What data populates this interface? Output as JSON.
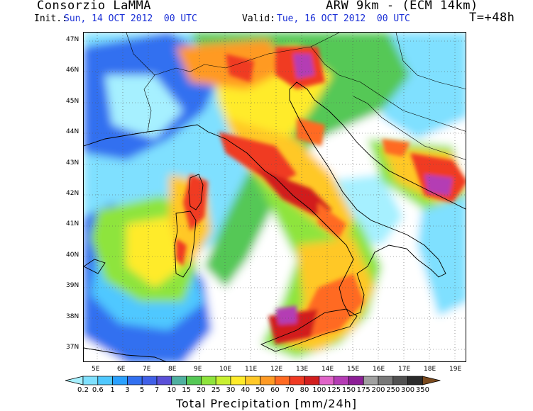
{
  "header": {
    "source": "Consorzio LaMMA",
    "model": "ARW 9km - (ECM 14km)",
    "init_label": "Init.:",
    "init_value": "Sun, 14 OCT 2012  00 UTC",
    "valid_label": "Valid:",
    "valid_value": "Tue, 16 OCT 2012  00 UTC",
    "lead_time": "T=+48h"
  },
  "map": {
    "lat_labels": [
      "47N",
      "46N",
      "45N",
      "44N",
      "43N",
      "42N",
      "41N",
      "40N",
      "39N",
      "38N",
      "37N"
    ],
    "lon_labels": [
      "5E",
      "6E",
      "7E",
      "8E",
      "9E",
      "10E",
      "11E",
      "12E",
      "13E",
      "14E",
      "15E",
      "16E",
      "17E",
      "18E",
      "19E"
    ],
    "grid": "dotted",
    "icons": [
      "coastline-shape",
      "border-shape",
      "precipitation-field"
    ]
  },
  "colorbar": {
    "title": "Total Precipitation [mm/24h]",
    "levels": [
      "0.2",
      "0.6",
      "1",
      "3",
      "5",
      "7",
      "10",
      "15",
      "20",
      "25",
      "30",
      "40",
      "50",
      "60",
      "70",
      "80",
      "100",
      "125",
      "150",
      "175",
      "200",
      "250",
      "300",
      "350"
    ],
    "colors": [
      "#a6f0ff",
      "#7fe0ff",
      "#4fc8ff",
      "#2aa0ff",
      "#3270f0",
      "#4060e8",
      "#5a50d8",
      "#4fb0a0",
      "#55c856",
      "#8ee43c",
      "#c8f032",
      "#ffeb2a",
      "#ffc828",
      "#ff9a24",
      "#ff6a22",
      "#f03a22",
      "#d21e1e",
      "#e064c8",
      "#b43cb4",
      "#8c1e96",
      "#a0a0a0",
      "#787878",
      "#505050",
      "#2a2a2a",
      "#7a4a1e"
    ]
  }
}
